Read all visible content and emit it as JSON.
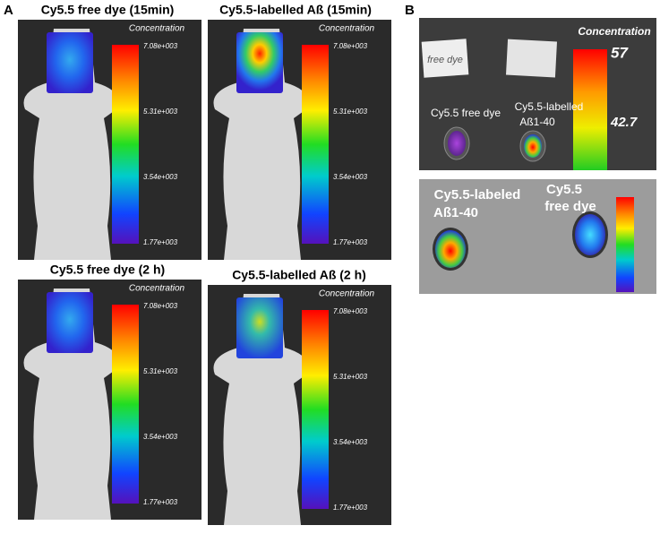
{
  "labels": {
    "a": "A",
    "b": "B"
  },
  "panel_a": [
    {
      "title": "Cy5.5 free dye (15min)",
      "scale_title": "Concentration",
      "scale_ticks": [
        "7.08e+003",
        "5.31e+003",
        "3.54e+003",
        "1.77e+003"
      ]
    },
    {
      "title": "Cy5.5-labelled Aß (15min)",
      "scale_title": "Concentration",
      "scale_ticks": [
        "7.08e+003",
        "5.31e+003",
        "3.54e+003",
        "1.77e+003"
      ]
    },
    {
      "title": "Cy5.5 free dye (2 h)",
      "scale_title": "Concentration",
      "scale_ticks": [
        "7.08e+003",
        "5.31e+003",
        "3.54e+003",
        "1.77e+003"
      ]
    },
    {
      "title": "Cy5.5-labelled Aß (2 h)",
      "scale_title": "Concentration",
      "scale_ticks": [
        "7.08e+003",
        "5.31e+003",
        "3.54e+003",
        "1.77e+003"
      ]
    }
  ],
  "panel_b": {
    "top": {
      "scale_title": "Concentration",
      "scale_max": 57,
      "scale_mid": 42.7,
      "note": "free dye",
      "labels": [
        "Cy5.5 free dye",
        "Cy5.5-labelled",
        "Aß1-40"
      ]
    },
    "bottom": {
      "labels": [
        "Cy5.5-labeled",
        "Aß1-40",
        "Cy5.5",
        "free dye"
      ]
    }
  }
}
